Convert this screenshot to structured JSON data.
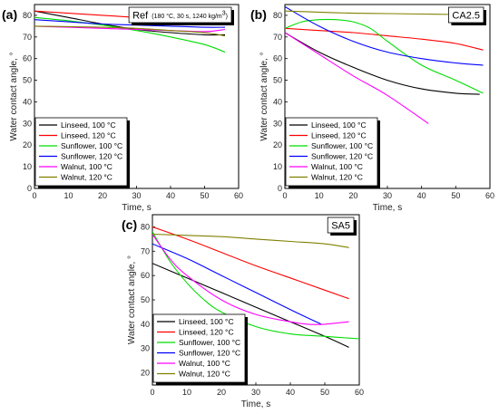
{
  "chart_data": [
    {
      "type": "line",
      "panel_label": "(a)",
      "title": "Ref",
      "title_detail": "(180 °C, 30 s, 1240 kg/m",
      "title_detail_sup": "3",
      "title_detail_end": ")",
      "xlabel": "Time, s",
      "ylabel": "Water contact angle, °",
      "xlim": [
        0,
        60
      ],
      "ylim": [
        0,
        85
      ],
      "xticks": [
        "0",
        "10",
        "20",
        "30",
        "40",
        "50",
        "60"
      ],
      "yticks": [
        "0",
        "10",
        "20",
        "30",
        "40",
        "50",
        "60",
        "70",
        "80"
      ],
      "legend_position": "lower-left",
      "series": [
        {
          "name": "Linseed, 100 °C",
          "color": "#000000",
          "x": [
            0,
            10,
            20,
            30,
            40,
            50,
            56
          ],
          "y": [
            82,
            79,
            76,
            73.5,
            72,
            71,
            71
          ]
        },
        {
          "name": "Linseed, 120 °C",
          "color": "#ff0000",
          "x": [
            0,
            10,
            20,
            30,
            40,
            50,
            56
          ],
          "y": [
            82,
            81,
            80,
            79,
            78,
            77,
            76.5
          ]
        },
        {
          "name": "Sunflower, 100 °C",
          "color": "#00dd00",
          "x": [
            0,
            10,
            20,
            30,
            40,
            50,
            56
          ],
          "y": [
            79,
            77.5,
            75.5,
            73,
            70,
            66.5,
            63
          ]
        },
        {
          "name": "Sunflower, 120 °C",
          "color": "#0000ff",
          "x": [
            0,
            10,
            20,
            30,
            40,
            50,
            56
          ],
          "y": [
            78,
            77,
            76,
            75.5,
            75,
            74.5,
            74.5
          ]
        },
        {
          "name": "Walnut, 100 °C",
          "color": "#ff00ff",
          "x": [
            0,
            10,
            20,
            30,
            40,
            50,
            56
          ],
          "y": [
            75,
            74.5,
            74,
            73.5,
            73,
            72.5,
            73.5
          ]
        },
        {
          "name": "Walnut, 120 °C",
          "color": "#808000",
          "x": [
            0,
            10,
            20,
            30,
            40,
            50,
            56
          ],
          "y": [
            75,
            74.8,
            74.5,
            74,
            73,
            72,
            70.5
          ]
        }
      ]
    },
    {
      "type": "line",
      "panel_label": "(b)",
      "title": "CA2.5",
      "xlabel": "Time, s",
      "ylabel": "Water contact angle, °",
      "xlim": [
        0,
        60
      ],
      "ylim": [
        0,
        85
      ],
      "xticks": [
        "0",
        "10",
        "20",
        "30",
        "40",
        "50",
        "60"
      ],
      "yticks": [
        "0",
        "10",
        "20",
        "30",
        "40",
        "50",
        "60",
        "70",
        "80"
      ],
      "legend_position": "lower-left",
      "series": [
        {
          "name": "Linseed, 100 °C",
          "color": "#000000",
          "x": [
            0,
            10,
            20,
            30,
            40,
            50,
            57
          ],
          "y": [
            72,
            63,
            56,
            50,
            46,
            44,
            43.5
          ]
        },
        {
          "name": "Linseed, 120 °C",
          "color": "#ff0000",
          "x": [
            0,
            10,
            20,
            30,
            40,
            50,
            58
          ],
          "y": [
            74,
            73,
            72,
            70.5,
            69,
            67,
            64
          ]
        },
        {
          "name": "Sunflower, 100 °C",
          "color": "#00dd00",
          "x": [
            0,
            5,
            10,
            15,
            20,
            25,
            30,
            40,
            50,
            58
          ],
          "y": [
            74,
            77,
            78,
            78,
            77,
            74,
            68,
            57,
            50,
            44
          ]
        },
        {
          "name": "Sunflower, 120 °C",
          "color": "#0000ff",
          "x": [
            0,
            10,
            20,
            30,
            40,
            50,
            58
          ],
          "y": [
            84,
            75,
            68,
            63,
            60,
            58,
            57
          ]
        },
        {
          "name": "Walnut, 100 °C",
          "color": "#ff00ff",
          "x": [
            0,
            10,
            20,
            30,
            42
          ],
          "y": [
            72,
            62,
            52,
            43,
            30
          ]
        },
        {
          "name": "Walnut, 120 °C",
          "color": "#808000",
          "x": [
            0,
            10,
            20,
            30,
            40,
            50,
            58
          ],
          "y": [
            82,
            81.5,
            81,
            80.8,
            80.6,
            80.4,
            80.3
          ]
        }
      ]
    },
    {
      "type": "line",
      "panel_label": "(c)",
      "title": "SA5",
      "xlabel": "Time, s",
      "ylabel": "Water contact angle, °",
      "xlim": [
        0,
        60
      ],
      "ylim": [
        15,
        85
      ],
      "xticks": [
        "0",
        "10",
        "20",
        "30",
        "40",
        "50",
        "60"
      ],
      "yticks": [
        "20",
        "30",
        "40",
        "50",
        "60",
        "70",
        "80"
      ],
      "legend_position": "lower-left",
      "series": [
        {
          "name": "Linseed, 100 °C",
          "color": "#000000",
          "x": [
            0,
            10,
            20,
            30,
            40,
            50,
            57
          ],
          "y": [
            65,
            59,
            53,
            47,
            41,
            35,
            30.5
          ]
        },
        {
          "name": "Linseed, 120 °C",
          "color": "#ff0000",
          "x": [
            0,
            10,
            20,
            30,
            40,
            50,
            57
          ],
          "y": [
            80,
            75,
            69.5,
            64,
            59,
            54,
            50.5
          ]
        },
        {
          "name": "Sunflower, 100 °C",
          "color": "#00dd00",
          "x": [
            0,
            5,
            10,
            15,
            20,
            30,
            40,
            50,
            60
          ],
          "y": [
            78,
            66,
            57,
            50,
            45,
            39,
            36,
            35,
            34
          ]
        },
        {
          "name": "Sunflower, 120 °C",
          "color": "#0000ff",
          "x": [
            0,
            10,
            20,
            30,
            40,
            49
          ],
          "y": [
            73,
            67,
            60,
            53,
            46,
            40
          ]
        },
        {
          "name": "Walnut, 100 °C",
          "color": "#ff00ff",
          "x": [
            0,
            5,
            10,
            20,
            30,
            40,
            45,
            50,
            57
          ],
          "y": [
            77,
            67,
            60,
            50,
            44,
            41,
            40,
            40,
            41
          ]
        },
        {
          "name": "Walnut, 120 °C",
          "color": "#808000",
          "x": [
            0,
            10,
            20,
            30,
            40,
            50,
            57
          ],
          "y": [
            77,
            76.5,
            76,
            75,
            74,
            73,
            71.5
          ]
        }
      ]
    }
  ]
}
